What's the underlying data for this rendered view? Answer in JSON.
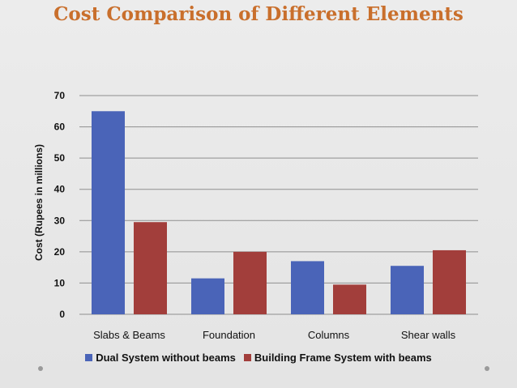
{
  "chart_data": {
    "type": "bar",
    "title": "Cost Comparison of Different Elements",
    "ylabel": "Cost (Rupees in millions)",
    "xlabel": "",
    "ylim": [
      0,
      70
    ],
    "yticks": [
      0,
      10,
      20,
      30,
      40,
      50,
      60,
      70
    ],
    "categories": [
      "Slabs & Beams",
      "Foundation",
      "Columns",
      "Shear walls"
    ],
    "series": [
      {
        "name": "Dual System without beams",
        "color": "#4a64b8",
        "values": [
          65,
          11.5,
          17,
          15.5
        ]
      },
      {
        "name": "Building Frame System with beams",
        "color": "#a23e3b",
        "values": [
          29.5,
          20,
          9.5,
          20.5
        ]
      }
    ],
    "grid": true,
    "legend_position": "bottom"
  }
}
